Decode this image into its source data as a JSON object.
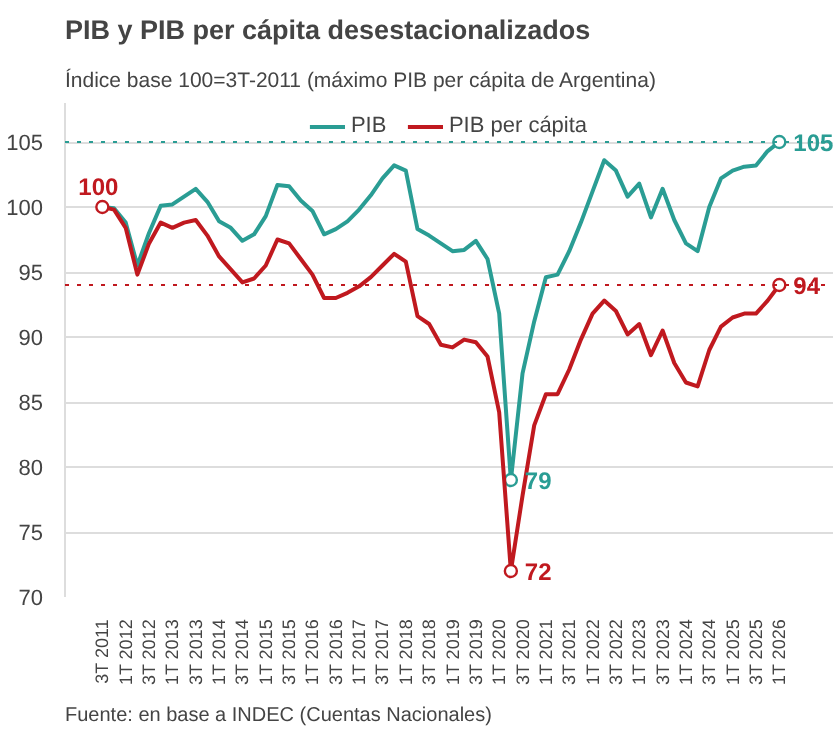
{
  "chart_data": {
    "type": "line",
    "title": "PIB y PIB per cápita desestacionalizados",
    "subtitle": "Índice base 100=3T-2011 (máximo PIB per cápita de Argentina)",
    "categories": [
      "3T 2011",
      null,
      "1T 2012",
      null,
      "3T 2012",
      null,
      "1T 2013",
      null,
      "3T 2013",
      null,
      "1T 2014",
      null,
      "3T 2014",
      null,
      "1T 2015",
      null,
      "3T 2015",
      null,
      "1T 2016",
      null,
      "3T 2016",
      null,
      "1T 2017",
      null,
      "3T 2017",
      null,
      "1T 2018",
      null,
      "3T 2018",
      null,
      "1T 2019",
      null,
      "3T 2019",
      null,
      "1T 2020",
      null,
      "3T 2020",
      null,
      "1T 2021",
      null,
      "3T 2021",
      null,
      "1T 2022",
      null,
      "3T 2022",
      null,
      "1T 2023",
      null,
      "3T 2023",
      null,
      "1T 2024",
      null,
      "3T 2024",
      null,
      "1T 2025",
      null,
      "3T 2025",
      null,
      "1T 2026"
    ],
    "series": [
      {
        "name": "PIB",
        "color": "#2a9d94",
        "values": [
          100,
          99.9,
          98.8,
          95.5,
          98,
          100.1,
          100.2,
          100.8,
          101.4,
          100.4,
          98.9,
          98.4,
          97.4,
          97.9,
          99.3,
          101.7,
          101.6,
          100.5,
          99.7,
          97.9,
          98.3,
          98.9,
          99.8,
          100.9,
          102.2,
          103.2,
          102.8,
          98.3,
          97.8,
          97.2,
          96.6,
          96.7,
          97.4,
          96,
          91.8,
          79,
          87.2,
          91.2,
          94.6,
          94.8,
          96.6,
          98.8,
          101.2,
          103.6,
          102.8,
          100.8,
          101.8,
          99.2,
          101.4,
          99,
          97.2,
          96.6,
          100,
          102.2,
          102.8,
          103.1,
          103.2,
          104.3,
          105
        ],
        "value_labels": [
          null,
          null,
          null,
          null,
          null,
          null,
          null,
          null,
          null,
          null,
          null,
          null,
          null,
          null,
          null,
          null,
          null,
          null,
          null,
          null,
          null,
          null,
          null,
          null,
          null,
          null,
          null,
          null,
          null,
          null,
          null,
          null,
          null,
          null,
          null,
          "79",
          null,
          null,
          null,
          null,
          null,
          null,
          null,
          null,
          null,
          null,
          null,
          null,
          null,
          null,
          null,
          null,
          null,
          null,
          null,
          null,
          null,
          null,
          "105"
        ]
      },
      {
        "name": "PIB per cápita",
        "color": "#c0191f",
        "values": [
          100,
          99.8,
          98.4,
          94.8,
          97.2,
          98.8,
          98.4,
          98.8,
          99,
          97.8,
          96.2,
          95.2,
          94.2,
          94.5,
          95.5,
          97.5,
          97.2,
          96,
          94.8,
          93,
          93,
          93.4,
          93.9,
          94.6,
          95.5,
          96.4,
          95.8,
          91.6,
          91,
          89.4,
          89.2,
          89.8,
          89.6,
          88.5,
          84.2,
          72,
          77.8,
          83.2,
          85.6,
          85.6,
          87.5,
          89.8,
          91.8,
          92.8,
          92,
          90.2,
          91,
          88.6,
          90.5,
          88,
          86.5,
          86.2,
          89,
          90.8,
          91.5,
          91.8,
          91.8,
          92.8,
          94
        ],
        "value_labels": [
          "100",
          null,
          null,
          null,
          null,
          null,
          null,
          null,
          null,
          null,
          null,
          null,
          null,
          null,
          null,
          null,
          null,
          null,
          null,
          null,
          null,
          null,
          null,
          null,
          null,
          null,
          null,
          null,
          null,
          null,
          null,
          null,
          null,
          null,
          null,
          "72",
          null,
          null,
          null,
          null,
          null,
          null,
          null,
          null,
          null,
          null,
          null,
          null,
          null,
          null,
          null,
          null,
          null,
          null,
          null,
          null,
          null,
          null,
          "94"
        ]
      }
    ],
    "ylim": [
      70,
      108
    ],
    "yticks": [
      70,
      75,
      80,
      85,
      90,
      95,
      100,
      105
    ],
    "grid": "y",
    "legend": "top",
    "line_style": "solid",
    "ref_lines": [
      {
        "axis": "y",
        "value": 105,
        "color": "#2a9d94",
        "line_style": "dotted"
      },
      {
        "axis": "y",
        "value": 94,
        "color": "#c0191f",
        "line_style": "dotted"
      }
    ],
    "annotations": [
      "Fuente: en base a INDEC (Cuentas Nacionales)"
    ]
  }
}
